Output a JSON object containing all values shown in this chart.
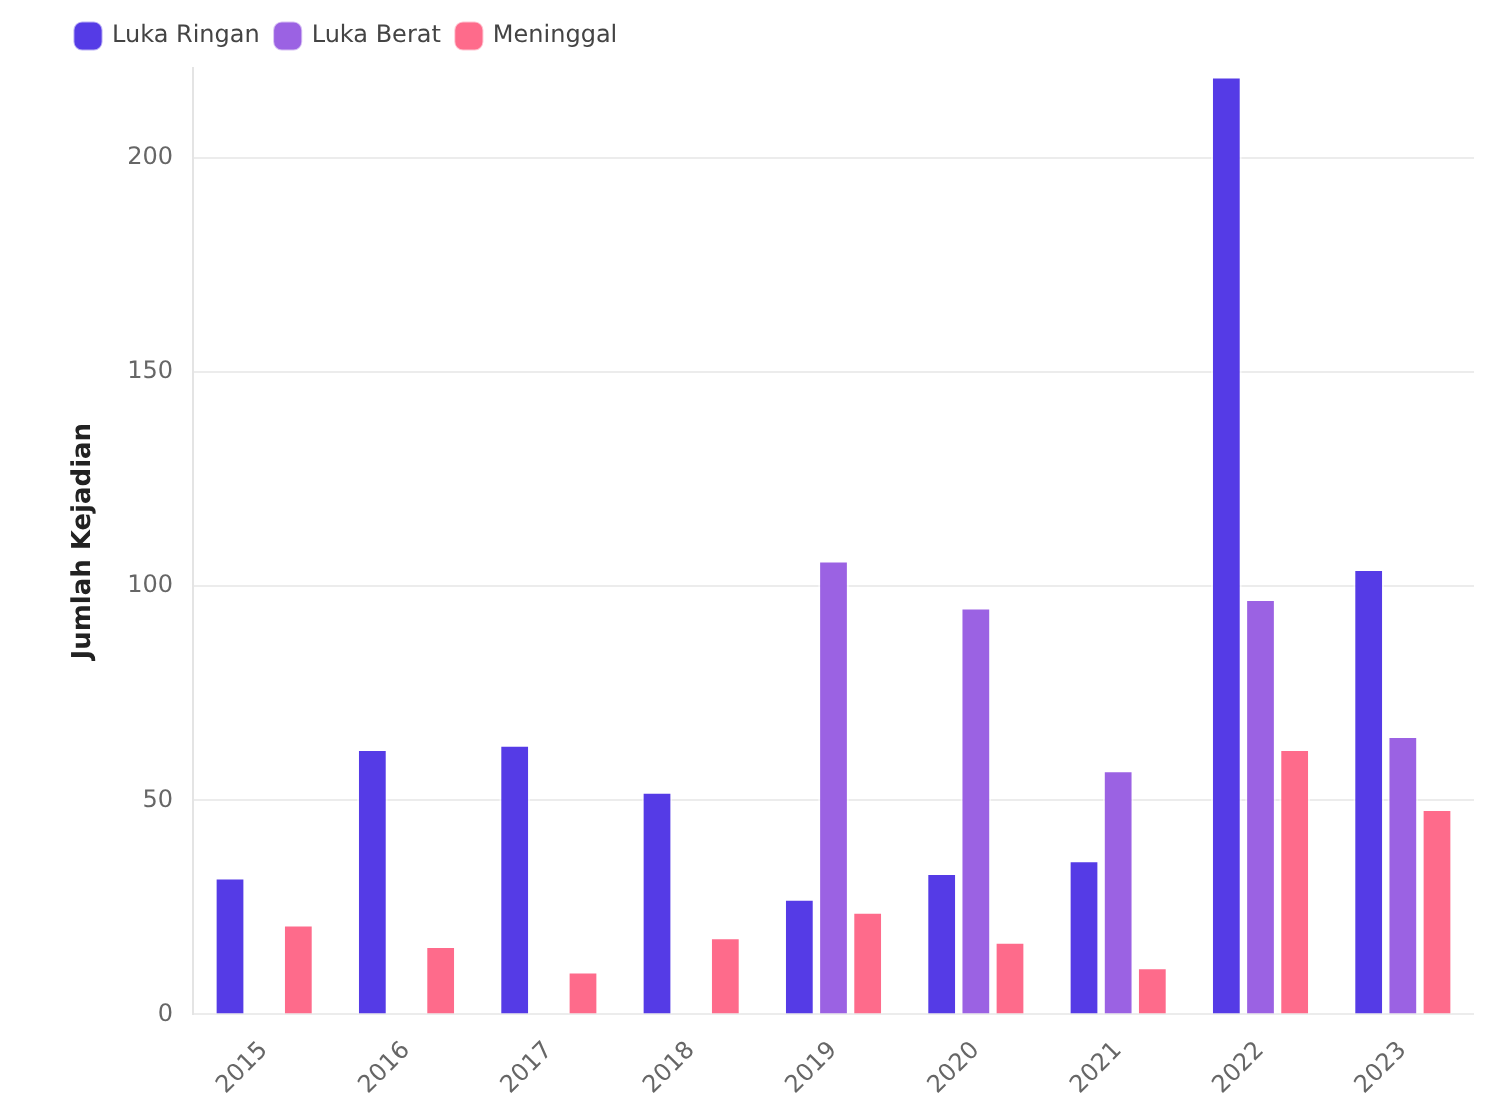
{
  "chart_data": {
    "type": "bar",
    "ylabel": "Jumlah Kejadian",
    "categories": [
      "2015",
      "2016",
      "2017",
      "2018",
      "2019",
      "2020",
      "2021",
      "2022",
      "2023"
    ],
    "series": [
      {
        "name": "Luka Ringan",
        "color": "#553be6",
        "values": [
          32,
          62,
          63,
          52,
          27,
          33,
          36,
          219,
          104
        ]
      },
      {
        "name": "Luka Berat",
        "color": "#9b62e3",
        "values": [
          null,
          null,
          null,
          null,
          106,
          95,
          57,
          97,
          65
        ]
      },
      {
        "name": "Meninggal",
        "color": "#fe6b8b",
        "values": [
          21,
          16,
          10,
          18,
          24,
          17,
          11,
          62,
          48
        ]
      }
    ],
    "ylim": [
      0,
      221
    ],
    "yticks": [
      0,
      50,
      100,
      150,
      200
    ],
    "grid": "y",
    "legend": "top left"
  }
}
